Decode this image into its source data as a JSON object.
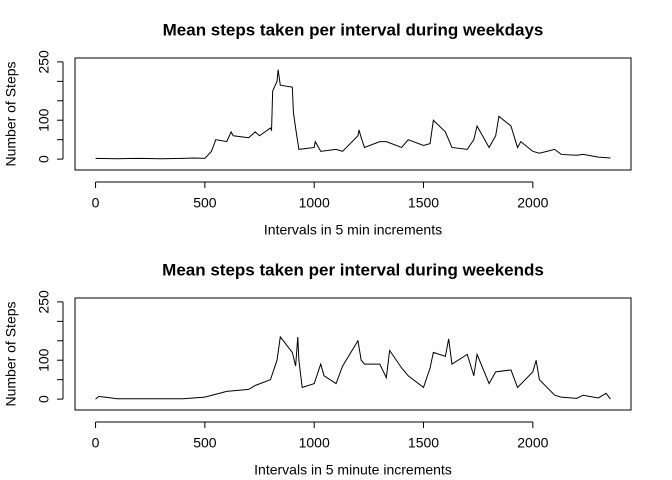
{
  "chart_data": [
    {
      "type": "line",
      "title": "Mean steps taken per interval during weekdays",
      "xlabel": "Intervals in 5 min increments",
      "ylabel": "Number of Steps",
      "x": [
        0,
        100,
        200,
        300,
        400,
        450,
        500,
        530,
        550,
        600,
        620,
        630,
        700,
        730,
        750,
        800,
        805,
        810,
        830,
        835,
        845,
        900,
        905,
        915,
        930,
        1000,
        1005,
        1030,
        1100,
        1130,
        1200,
        1205,
        1215,
        1230,
        1300,
        1330,
        1400,
        1430,
        1500,
        1530,
        1545,
        1600,
        1630,
        1700,
        1730,
        1745,
        1800,
        1830,
        1845,
        1900,
        1930,
        1945,
        2000,
        2030,
        2100,
        2130,
        2200,
        2230,
        2300,
        2355
      ],
      "series": [
        {
          "name": "weekdays",
          "color": "#000000",
          "values": [
            2,
            1,
            2,
            1,
            2,
            3,
            2,
            20,
            50,
            45,
            70,
            60,
            55,
            70,
            60,
            80,
            75,
            175,
            200,
            230,
            190,
            185,
            120,
            80,
            25,
            30,
            45,
            20,
            25,
            20,
            60,
            75,
            55,
            30,
            45,
            45,
            30,
            50,
            35,
            40,
            100,
            70,
            30,
            25,
            50,
            85,
            30,
            60,
            110,
            85,
            30,
            45,
            20,
            15,
            25,
            12,
            10,
            12,
            5,
            3
          ]
        }
      ],
      "xlim": [
        -94,
        2449
      ],
      "xticks": [
        0,
        500,
        1000,
        1500,
        2000
      ],
      "ylim": [
        -28,
        260
      ],
      "yticks": [
        0,
        100,
        250
      ],
      "yticks_minor": [
        50,
        150,
        200
      ]
    },
    {
      "type": "line",
      "title": "Mean steps taken per interval during weekends",
      "xlabel": "Intervals in 5 minute increments",
      "ylabel": "Number of Steps",
      "x": [
        0,
        15,
        100,
        400,
        500,
        600,
        700,
        730,
        800,
        830,
        845,
        900,
        915,
        925,
        930,
        945,
        1000,
        1030,
        1045,
        1100,
        1130,
        1200,
        1215,
        1230,
        1300,
        1330,
        1345,
        1400,
        1430,
        1500,
        1530,
        1545,
        1600,
        1615,
        1630,
        1700,
        1730,
        1745,
        1800,
        1830,
        1900,
        1930,
        2000,
        2015,
        2030,
        2100,
        2130,
        2200,
        2230,
        2300,
        2335,
        2355
      ],
      "series": [
        {
          "name": "weekends",
          "color": "#000000",
          "values": [
            0,
            7,
            1,
            1,
            5,
            20,
            25,
            35,
            50,
            100,
            160,
            120,
            85,
            160,
            100,
            30,
            40,
            90,
            60,
            40,
            85,
            150,
            100,
            90,
            90,
            55,
            125,
            80,
            60,
            30,
            80,
            120,
            110,
            155,
            90,
            115,
            60,
            115,
            40,
            70,
            75,
            30,
            70,
            100,
            50,
            10,
            5,
            2,
            10,
            3,
            15,
            0
          ]
        }
      ],
      "xlim": [
        -94,
        2449
      ],
      "xticks": [
        0,
        500,
        1000,
        1500,
        2000
      ],
      "ylim": [
        -28,
        260
      ],
      "yticks": [
        0,
        100,
        250
      ],
      "yticks_minor": [
        50,
        150,
        200
      ]
    }
  ]
}
